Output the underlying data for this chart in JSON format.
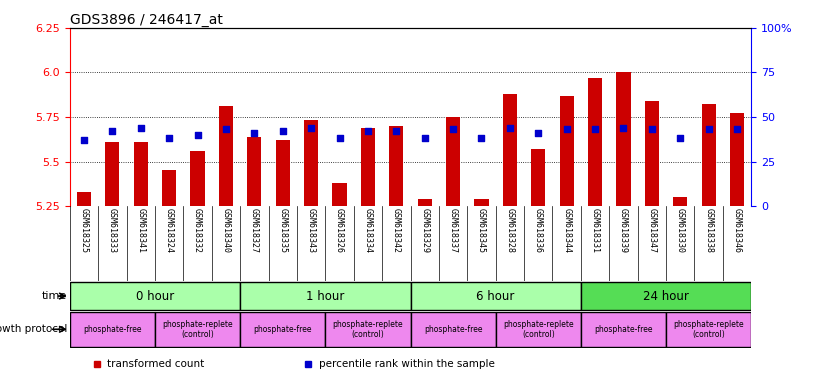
{
  "title": "GDS3896 / 246417_at",
  "samples": [
    "GSM618325",
    "GSM618333",
    "GSM618341",
    "GSM618324",
    "GSM618332",
    "GSM618340",
    "GSM618327",
    "GSM618335",
    "GSM618343",
    "GSM618326",
    "GSM618334",
    "GSM618342",
    "GSM618329",
    "GSM618337",
    "GSM618345",
    "GSM618328",
    "GSM618336",
    "GSM618344",
    "GSM618331",
    "GSM618339",
    "GSM618347",
    "GSM618330",
    "GSM618338",
    "GSM618346"
  ],
  "transformed_counts": [
    5.33,
    5.61,
    5.61,
    5.45,
    5.56,
    5.81,
    5.64,
    5.62,
    5.73,
    5.38,
    5.69,
    5.7,
    5.29,
    5.75,
    5.29,
    5.88,
    5.57,
    5.87,
    5.97,
    6.0,
    5.84,
    5.3,
    5.82,
    5.77
  ],
  "percentile_ranks": [
    37,
    42,
    44,
    38,
    40,
    43,
    41,
    42,
    44,
    38,
    42,
    42,
    38,
    43,
    38,
    44,
    41,
    43,
    43,
    44,
    43,
    38,
    43,
    43
  ],
  "ylim": [
    5.25,
    6.25
  ],
  "yticks_left": [
    5.25,
    5.5,
    5.75,
    6.0,
    6.25
  ],
  "yticks_right_vals": [
    0,
    25,
    50,
    75,
    100
  ],
  "yticks_right_labels": [
    "0",
    "25",
    "50",
    "75",
    "100%"
  ],
  "bar_color": "#cc0000",
  "dot_color": "#0000cc",
  "bar_bottom": 5.25,
  "time_groups": [
    {
      "label": "0 hour",
      "start": 0,
      "end": 6,
      "color": "#aaffaa"
    },
    {
      "label": "1 hour",
      "start": 6,
      "end": 12,
      "color": "#aaffaa"
    },
    {
      "label": "6 hour",
      "start": 12,
      "end": 18,
      "color": "#aaffaa"
    },
    {
      "label": "24 hour",
      "start": 18,
      "end": 24,
      "color": "#55dd55"
    }
  ],
  "protocol_groups": [
    {
      "label": "phosphate-free",
      "start": 0,
      "end": 3
    },
    {
      "label": "phosphate-replete\n(control)",
      "start": 3,
      "end": 6
    },
    {
      "label": "phosphate-free",
      "start": 6,
      "end": 9
    },
    {
      "label": "phosphate-replete\n(control)",
      "start": 9,
      "end": 12
    },
    {
      "label": "phosphate-free",
      "start": 12,
      "end": 15
    },
    {
      "label": "phosphate-replete\n(control)",
      "start": 15,
      "end": 18
    },
    {
      "label": "phosphate-free",
      "start": 18,
      "end": 21
    },
    {
      "label": "phosphate-replete\n(control)",
      "start": 21,
      "end": 24
    }
  ],
  "proto_color": "#ee88ee",
  "bar_width": 0.5,
  "dot_size": 16,
  "xlabel_fontsize": 6.0,
  "legend_items": [
    {
      "label": "transformed count",
      "color": "#cc0000"
    },
    {
      "label": "percentile rank within the sample",
      "color": "#0000cc"
    }
  ]
}
